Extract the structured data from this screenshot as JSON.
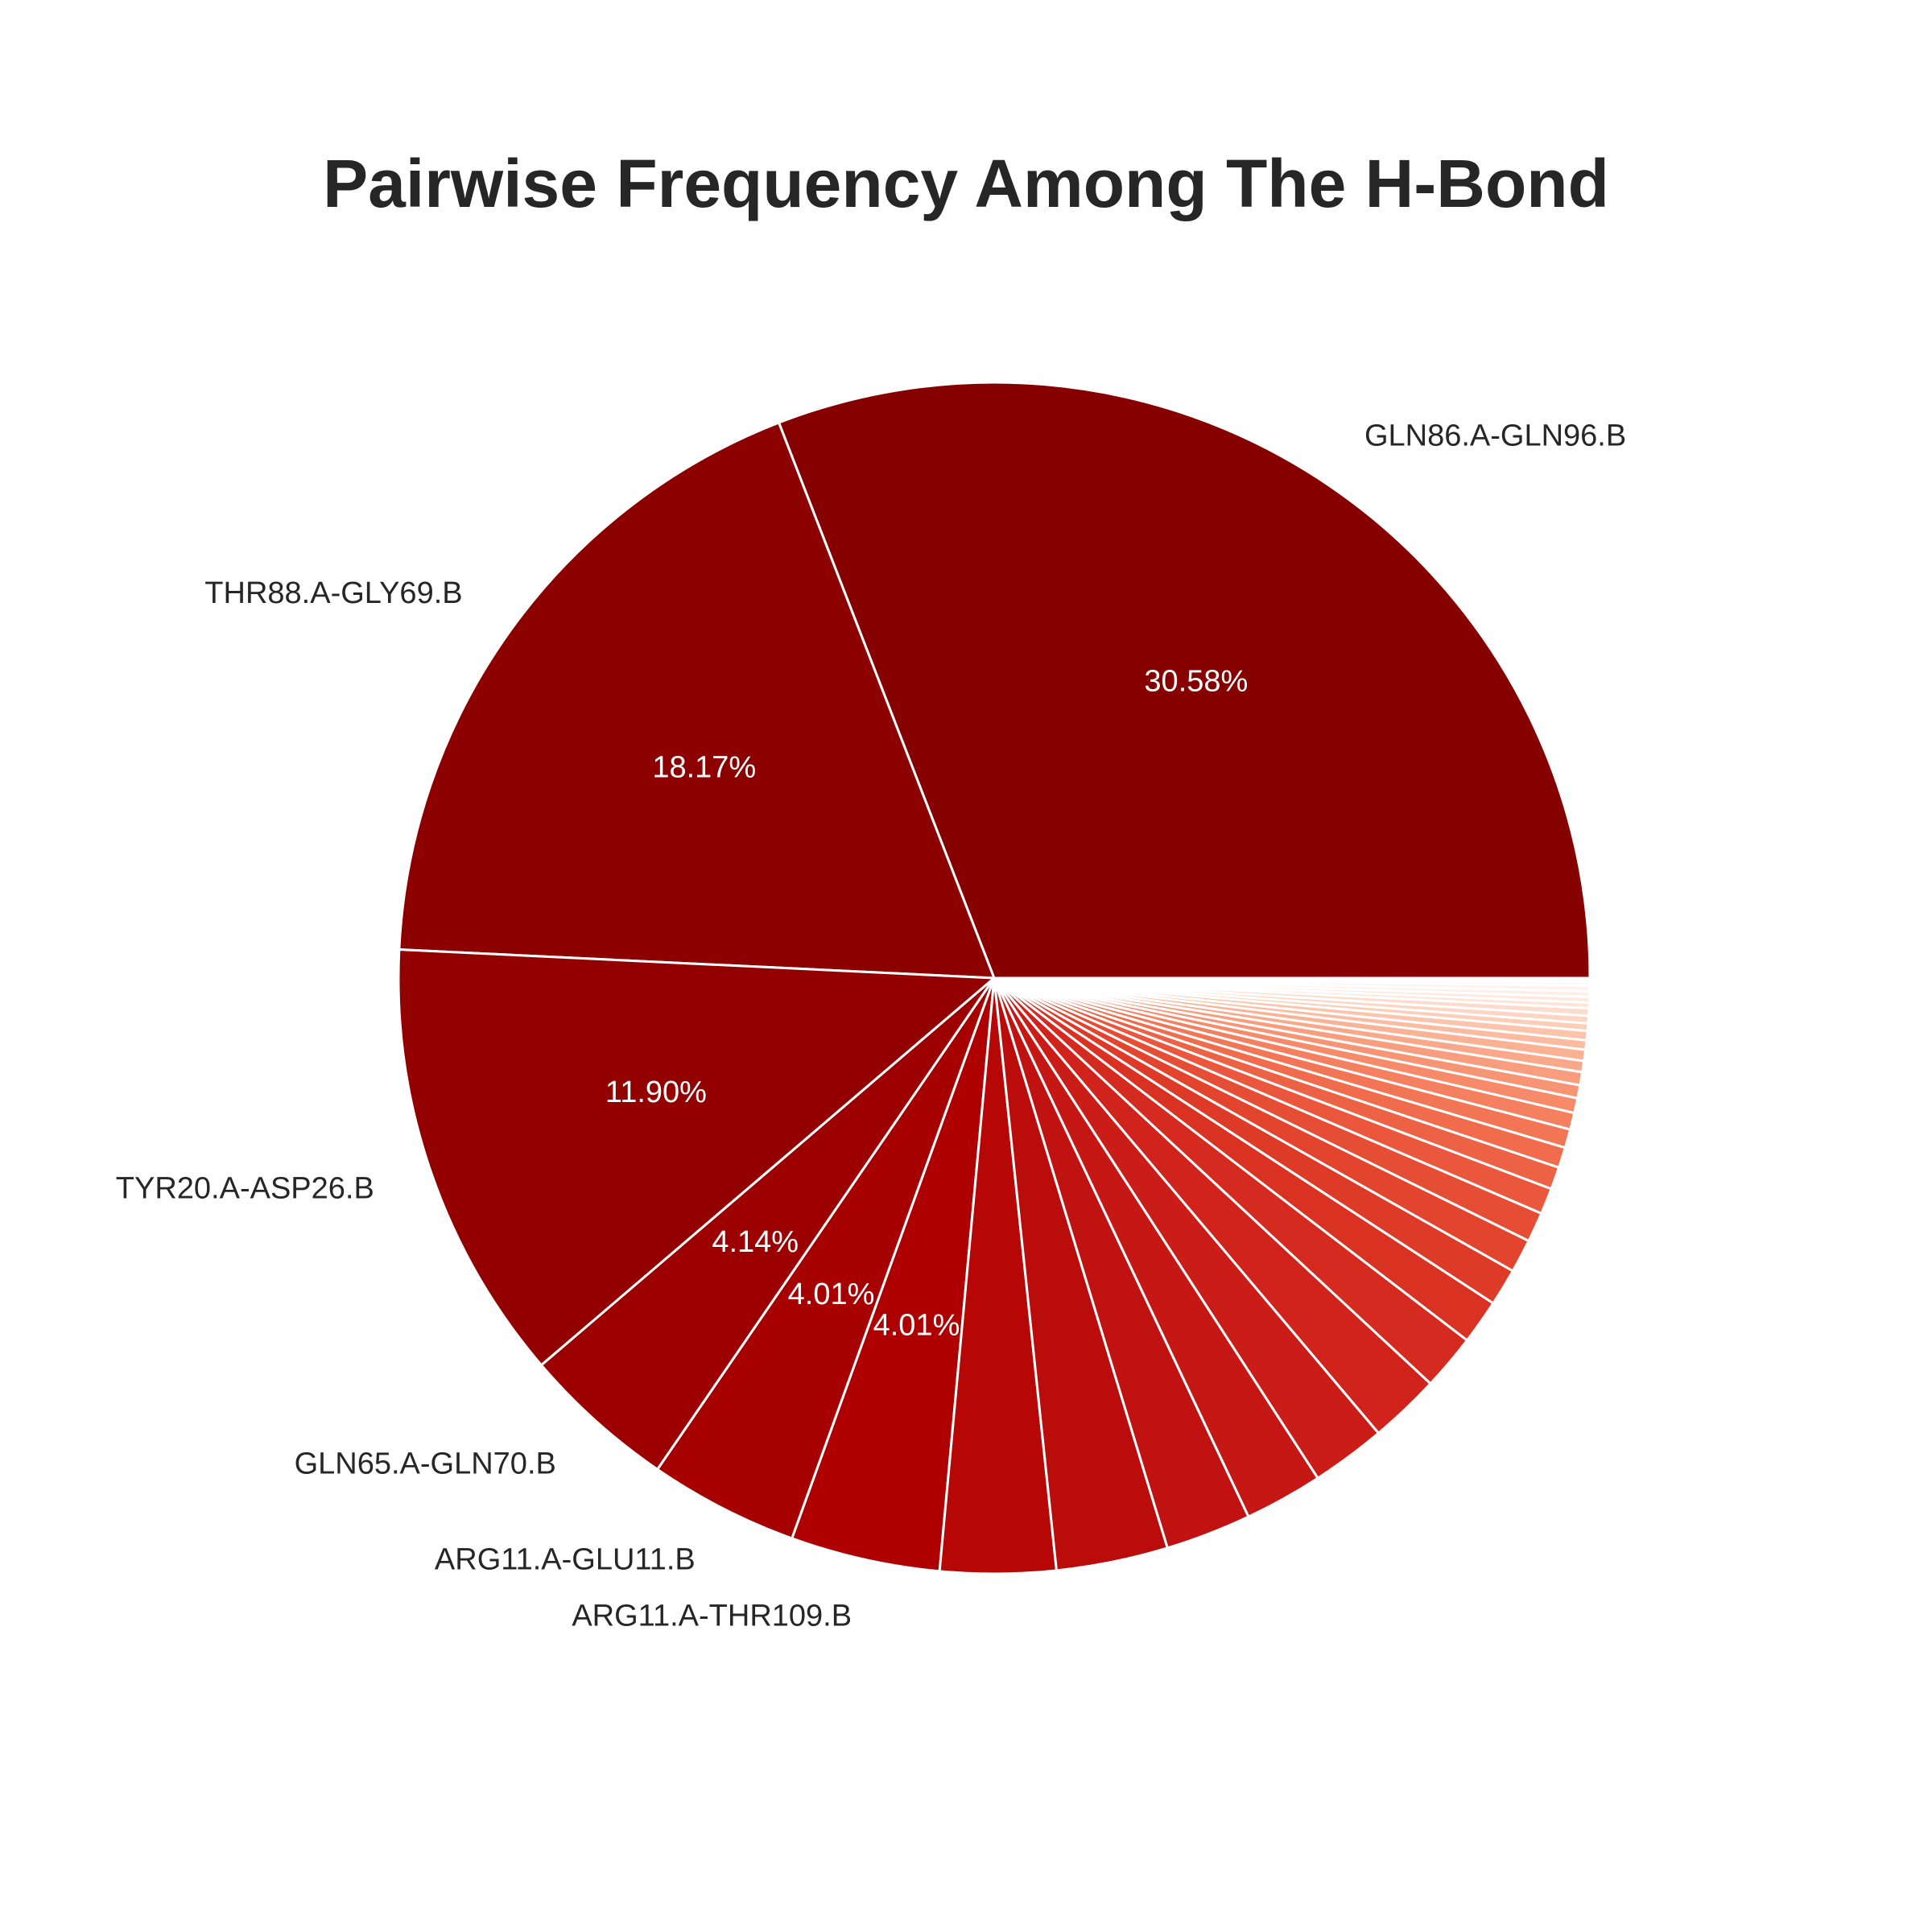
{
  "chart_data": {
    "type": "pie",
    "title": "Pairwise Frequency Among The H-Bond",
    "start_angle_deg": 0,
    "direction": "counterclockwise",
    "slices": [
      {
        "label": "GLN86.A-GLN96.B",
        "value": 30.58,
        "pct_text": "30.58%",
        "color": "#870000"
      },
      {
        "label": "THR88.A-GLY69.B",
        "value": 18.17,
        "pct_text": "18.17%",
        "color": "#8c0000"
      },
      {
        "label": "TYR20.A-ASP26.B",
        "value": 11.9,
        "pct_text": "11.90%",
        "color": "#930000"
      },
      {
        "label": "GLN65.A-GLN70.B",
        "value": 4.14,
        "pct_text": "4.14%",
        "color": "#9c0000"
      },
      {
        "label": "ARG11.A-GLU11.B",
        "value": 4.01,
        "pct_text": "4.01%",
        "color": "#a60000"
      },
      {
        "label": "ARG11.A-THR109.B",
        "value": 4.01,
        "pct_text": "4.01%",
        "color": "#ae0000"
      },
      {
        "label": "",
        "value": 3.1,
        "pct_text": "",
        "color": "#b60606"
      },
      {
        "label": "",
        "value": 3.0,
        "pct_text": "",
        "color": "#bb0c0c"
      },
      {
        "label": "",
        "value": 2.3,
        "pct_text": "",
        "color": "#c01210"
      },
      {
        "label": "",
        "value": 2.1,
        "pct_text": "",
        "color": "#c51814"
      },
      {
        "label": "",
        "value": 2.0,
        "pct_text": "",
        "color": "#ca1d17"
      },
      {
        "label": "",
        "value": 1.9,
        "pct_text": "",
        "color": "#cf231b"
      },
      {
        "label": "",
        "value": 1.5,
        "pct_text": "",
        "color": "#d42a1f"
      },
      {
        "label": "",
        "value": 1.2,
        "pct_text": "",
        "color": "#d93223"
      },
      {
        "label": "",
        "value": 1.0,
        "pct_text": "",
        "color": "#de3a28"
      },
      {
        "label": "",
        "value": 0.9,
        "pct_text": "",
        "color": "#e2442e"
      },
      {
        "label": "",
        "value": 0.8,
        "pct_text": "",
        "color": "#e64d35"
      },
      {
        "label": "",
        "value": 0.7,
        "pct_text": "",
        "color": "#ea573c"
      },
      {
        "label": "",
        "value": 0.6,
        "pct_text": "",
        "color": "#ed6244"
      },
      {
        "label": "",
        "value": 0.55,
        "pct_text": "",
        "color": "#f06c4c"
      },
      {
        "label": "",
        "value": 0.5,
        "pct_text": "",
        "color": "#f27656"
      },
      {
        "label": "",
        "value": 0.45,
        "pct_text": "",
        "color": "#f4805f"
      },
      {
        "label": "",
        "value": 0.4,
        "pct_text": "",
        "color": "#f68a69"
      },
      {
        "label": "",
        "value": 0.35,
        "pct_text": "",
        "color": "#f79473"
      },
      {
        "label": "",
        "value": 0.35,
        "pct_text": "",
        "color": "#f89e7e"
      },
      {
        "label": "",
        "value": 0.3,
        "pct_text": "",
        "color": "#f9a889"
      },
      {
        "label": "",
        "value": 0.3,
        "pct_text": "",
        "color": "#fab294"
      },
      {
        "label": "",
        "value": 0.25,
        "pct_text": "",
        "color": "#fbbba0"
      },
      {
        "label": "",
        "value": 0.25,
        "pct_text": "",
        "color": "#fcc4ab"
      },
      {
        "label": "",
        "value": 0.2,
        "pct_text": "",
        "color": "#fccdb7"
      },
      {
        "label": "",
        "value": 0.2,
        "pct_text": "",
        "color": "#fdd5c2"
      },
      {
        "label": "",
        "value": 0.2,
        "pct_text": "",
        "color": "#fddccd"
      },
      {
        "label": "",
        "value": 0.15,
        "pct_text": "",
        "color": "#fee3d7"
      },
      {
        "label": "",
        "value": 0.15,
        "pct_text": "",
        "color": "#fee9e0"
      },
      {
        "label": "",
        "value": 0.15,
        "pct_text": "",
        "color": "#feeee8"
      },
      {
        "label": "",
        "value": 0.15,
        "pct_text": "",
        "color": "#fff2ee"
      },
      {
        "label": "",
        "value": 0.1,
        "pct_text": "",
        "color": "#fff5f1"
      },
      {
        "label": "",
        "value": 0.1,
        "pct_text": "",
        "color": "#fff7f4"
      }
    ],
    "edge_color": "#ffffff",
    "label_color": "#262626",
    "pct_color": "#ffffff"
  }
}
